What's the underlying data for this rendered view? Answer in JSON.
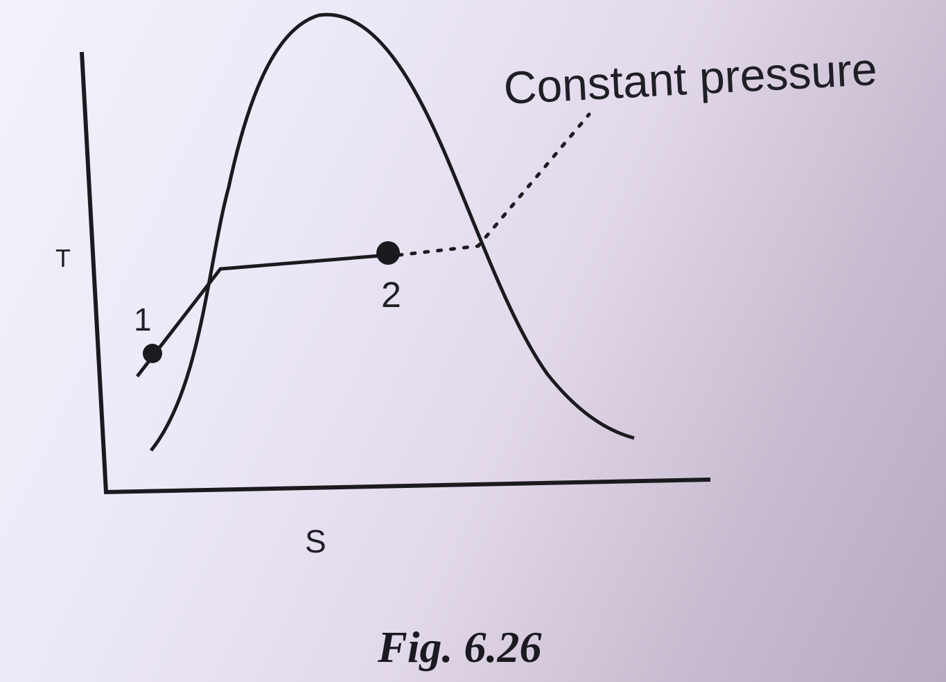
{
  "diagram": {
    "axis_y_label": "T",
    "axis_x_label": "S",
    "annotation": "Constant pressure",
    "point_1_label": "1",
    "point_2_label": "2"
  },
  "caption": "Fig. 6.26",
  "colors": {
    "ink": "#1a1a1f",
    "paper": "#ece8f6"
  }
}
